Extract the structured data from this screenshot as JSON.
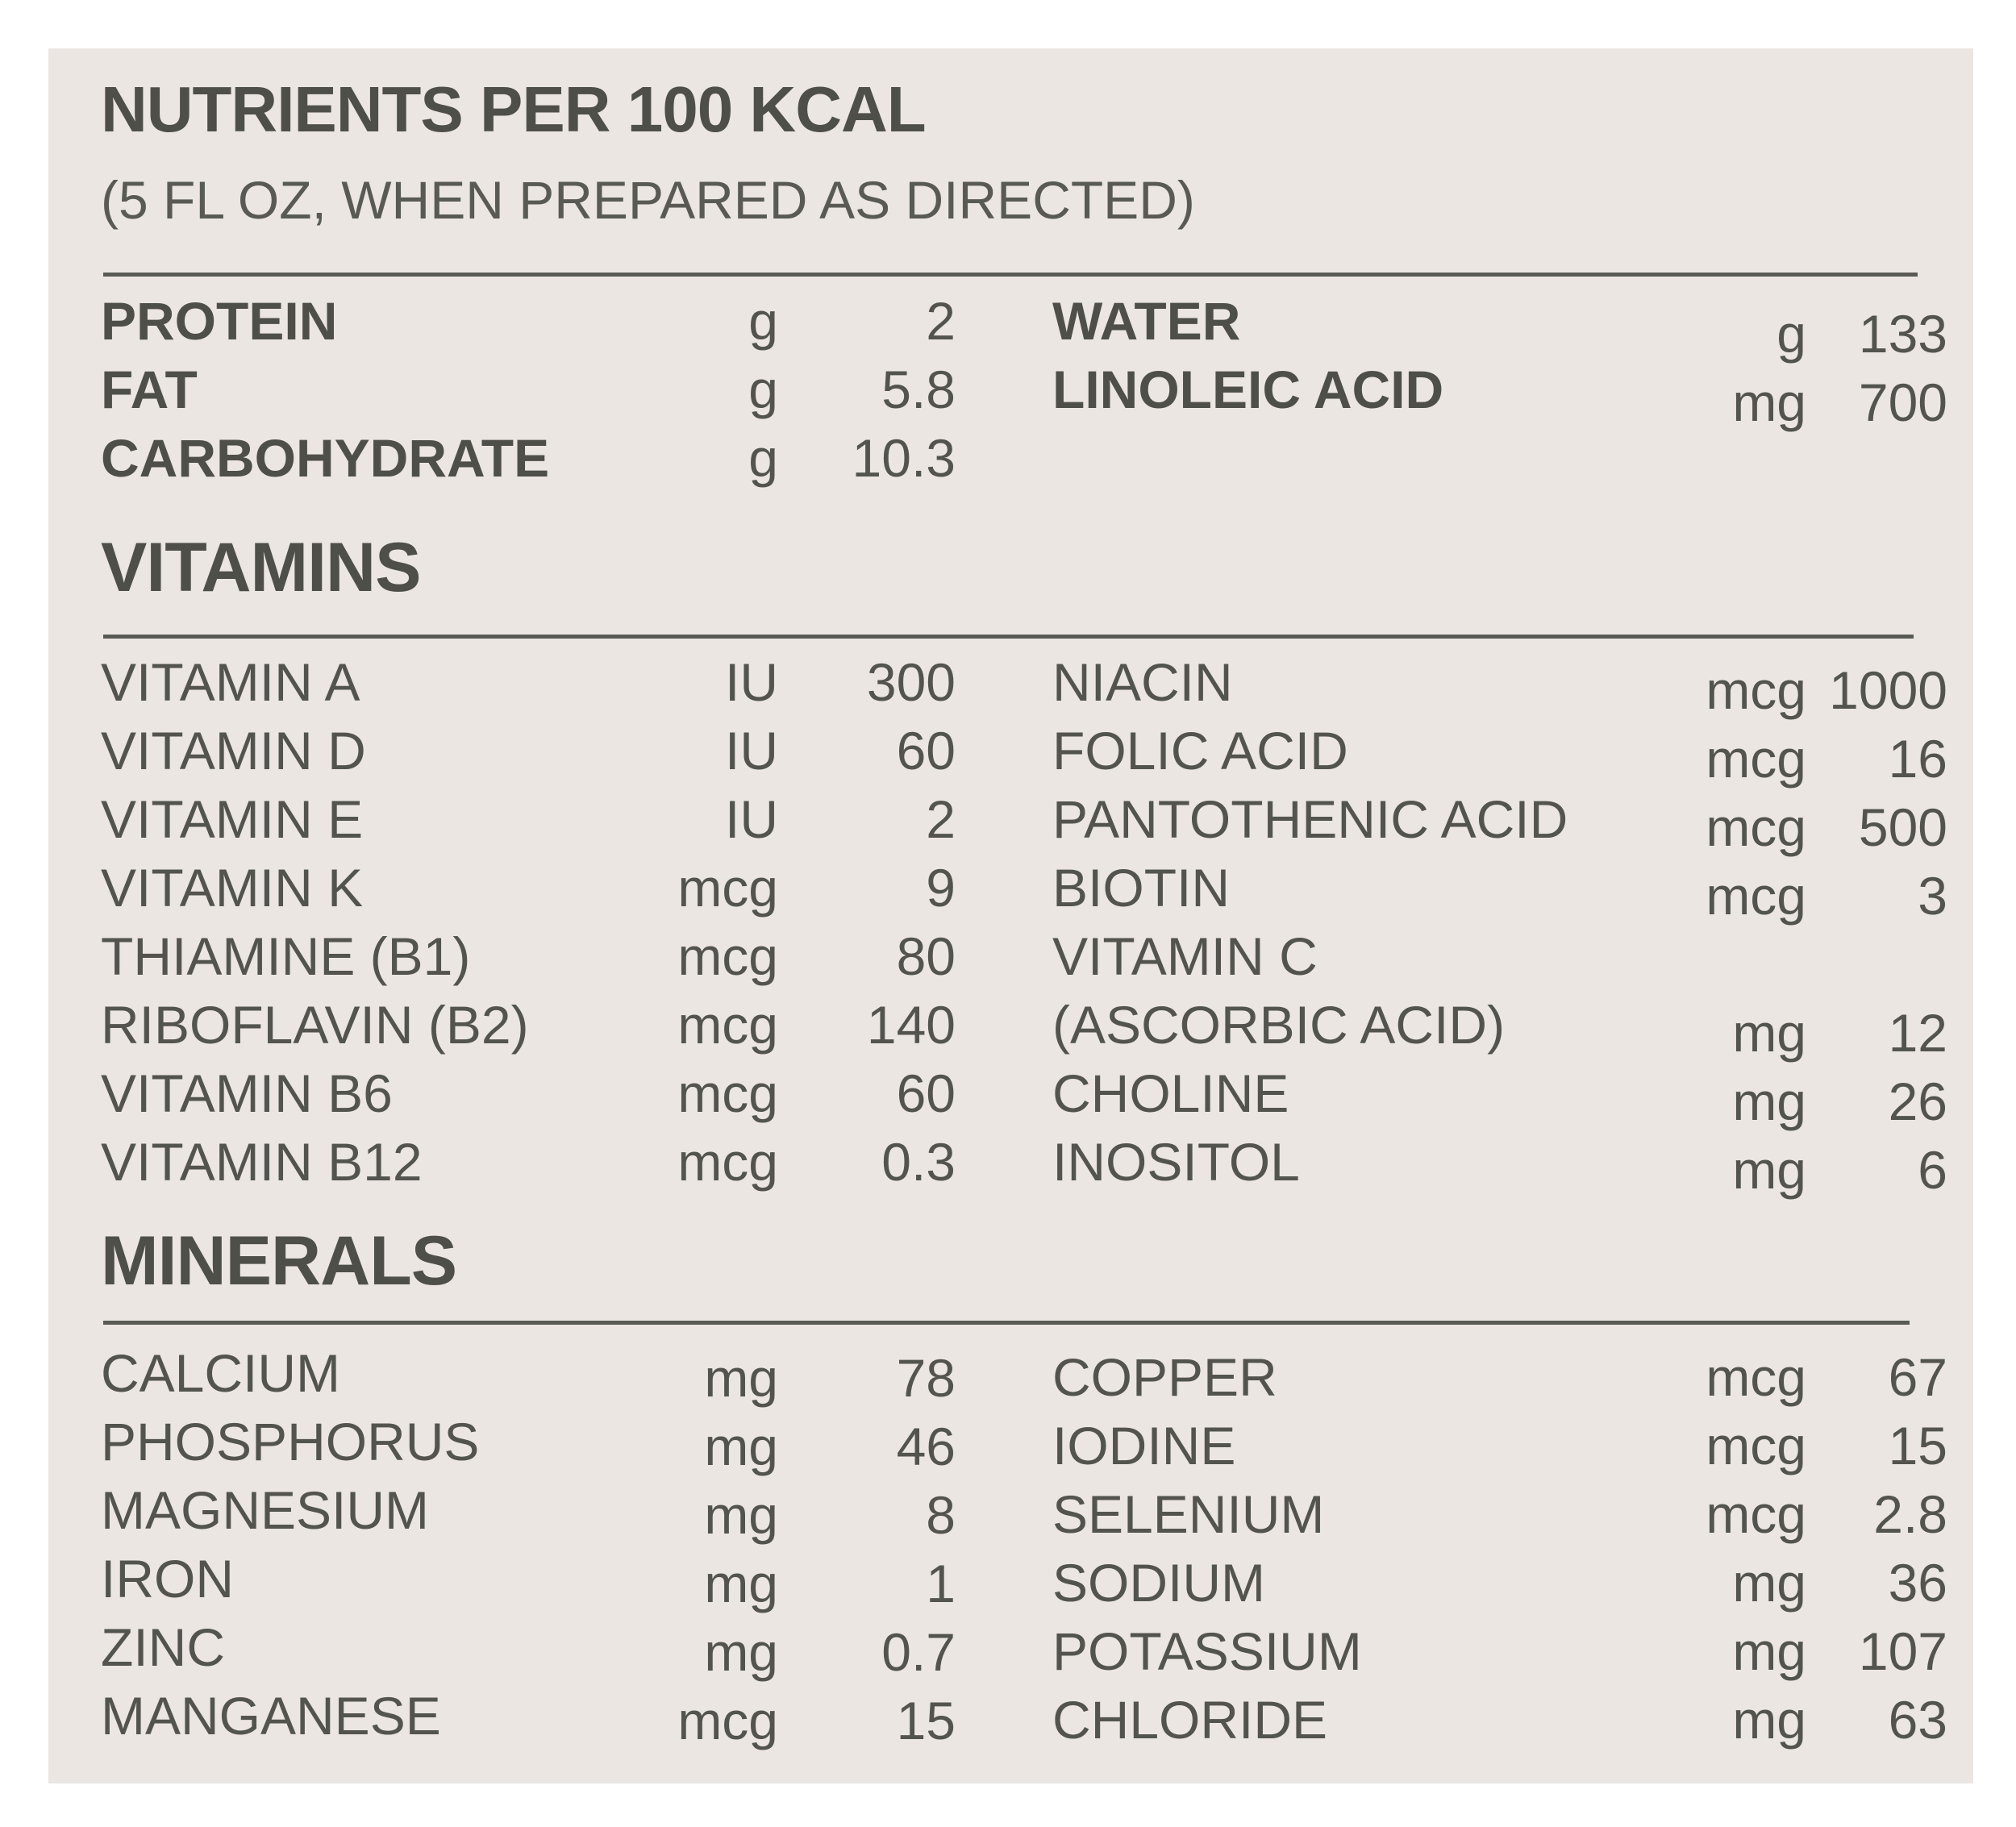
{
  "header": {
    "title": "NUTRIENTS PER 100 KCAL",
    "subtitle": "(5 FL OZ, WHEN PREPARED AS DIRECTED)"
  },
  "macros": {
    "left": [
      {
        "name": "PROTEIN",
        "unit": "g",
        "value": "2"
      },
      {
        "name": "FAT",
        "unit": "g",
        "value": "5.8"
      },
      {
        "name": "CARBOHYDRATE",
        "unit": "g",
        "value": "10.3"
      }
    ],
    "right": [
      {
        "name": "WATER",
        "unit": "g",
        "value": "133"
      },
      {
        "name": "LINOLEIC ACID",
        "unit": "mg",
        "value": "700"
      }
    ]
  },
  "vitamins": {
    "heading": "VITAMINS",
    "left": [
      {
        "name": "VITAMIN A",
        "unit": "IU",
        "value": "300"
      },
      {
        "name": "VITAMIN D",
        "unit": "IU",
        "value": "60"
      },
      {
        "name": "VITAMIN E",
        "unit": "IU",
        "value": "2"
      },
      {
        "name": "VITAMIN K",
        "unit": "mcg",
        "value": "9"
      },
      {
        "name": "THIAMINE (B1)",
        "unit": "mcg",
        "value": "80"
      },
      {
        "name": "RIBOFLAVIN (B2)",
        "unit": "mcg",
        "value": "140"
      },
      {
        "name": "VITAMIN B6",
        "unit": "mcg",
        "value": "60"
      },
      {
        "name": "VITAMIN B12",
        "unit": "mcg",
        "value": "0.3"
      }
    ],
    "right": [
      {
        "name": "NIACIN",
        "unit": "mcg",
        "value": "1000"
      },
      {
        "name": "FOLIC ACID",
        "unit": "mcg",
        "value": "16"
      },
      {
        "name": "PANTOTHENIC ACID",
        "unit": "mcg",
        "value": "500"
      },
      {
        "name": "BIOTIN",
        "unit": "mcg",
        "value": "3"
      },
      {
        "name": "VITAMIN C",
        "unit": "",
        "value": ""
      },
      {
        "name": "(ASCORBIC ACID)",
        "unit": "mg",
        "value": "12"
      },
      {
        "name": "CHOLINE",
        "unit": "mg",
        "value": "26"
      },
      {
        "name": "INOSITOL",
        "unit": "mg",
        "value": "6"
      }
    ]
  },
  "minerals": {
    "heading": "MINERALS",
    "left": [
      {
        "name": "CALCIUM",
        "unit": "mg",
        "value": "78"
      },
      {
        "name": "PHOSPHORUS",
        "unit": "mg",
        "value": "46"
      },
      {
        "name": "MAGNESIUM",
        "unit": "mg",
        "value": "8"
      },
      {
        "name": "IRON",
        "unit": "mg",
        "value": "1"
      },
      {
        "name": "ZINC",
        "unit": "mg",
        "value": "0.7"
      },
      {
        "name": "MANGANESE",
        "unit": "mcg",
        "value": "15"
      }
    ],
    "right": [
      {
        "name": "COPPER",
        "unit": "mcg",
        "value": "67"
      },
      {
        "name": "IODINE",
        "unit": "mcg",
        "value": "15"
      },
      {
        "name": "SELENIUM",
        "unit": "mcg",
        "value": "2.8"
      },
      {
        "name": "SODIUM",
        "unit": "mg",
        "value": "36"
      },
      {
        "name": "POTASSIUM",
        "unit": "mg",
        "value": "107"
      },
      {
        "name": "CHLORIDE",
        "unit": "mg",
        "value": "63"
      }
    ]
  }
}
